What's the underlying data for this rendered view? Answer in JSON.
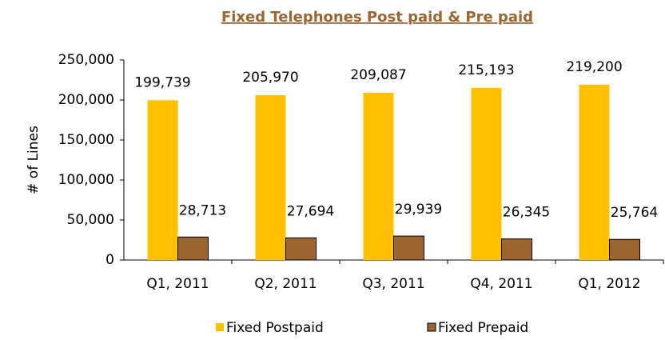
{
  "chart_data": {
    "type": "bar",
    "title": "Fixed Telephones  Post paid & Pre paid",
    "y_label": "# of Lines",
    "categories": [
      "Q1, 2011",
      "Q2, 2011",
      "Q3, 2011",
      "Q4, 2011",
      "Q1, 2012"
    ],
    "series": [
      {
        "name": "Fixed Postpaid",
        "color": "#FFC000",
        "values": [
          199739,
          205970,
          209087,
          215193,
          219200
        ],
        "value_labels": [
          "199,739",
          "205,970",
          "209,087",
          "215,193",
          "219,200"
        ]
      },
      {
        "name": "Fixed Prepaid",
        "color": "#9C6530",
        "values": [
          28713,
          27694,
          29939,
          26345,
          25764
        ],
        "value_labels": [
          "28,713",
          "27,694",
          "29,939",
          "26,345",
          "25,764"
        ]
      }
    ],
    "ylim": [
      0,
      250000
    ],
    "yticks": [
      {
        "value": 0,
        "label": "0"
      },
      {
        "value": 50000,
        "label": "50,000"
      },
      {
        "value": 100000,
        "label": "100,000"
      },
      {
        "value": 150000,
        "label": "150,000"
      },
      {
        "value": 200000,
        "label": "200,000"
      },
      {
        "value": 250000,
        "label": "250,000"
      }
    ],
    "legend": "bottom"
  }
}
